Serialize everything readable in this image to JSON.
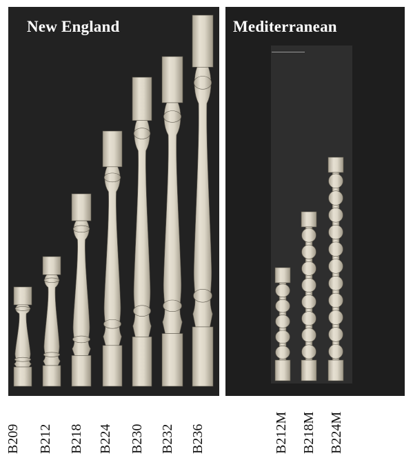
{
  "panels": {
    "new_england": {
      "title": "New England",
      "codes": [
        "B209",
        "B212",
        "B218",
        "B224",
        "B230",
        "B232",
        "B236"
      ]
    },
    "mediterranean": {
      "title": "Mediterranean",
      "codes": [
        "B212M",
        "B218M",
        "B224M"
      ]
    }
  },
  "colors": {
    "panel_background": "#222222",
    "wood": "#ddd7c8",
    "wood_shade": "#b9b2a2",
    "title_text": "#ffffff",
    "label_text": "#111111"
  }
}
